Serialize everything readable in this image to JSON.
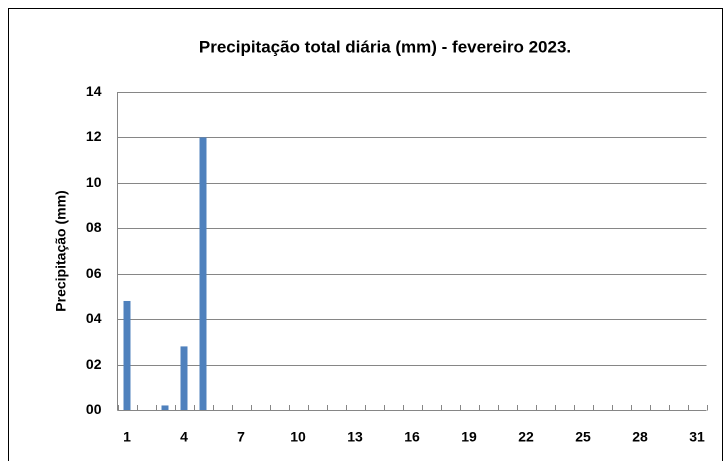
{
  "chart_data": {
    "type": "bar",
    "title": "Precipitação total diária (mm) - fevereiro 2023.",
    "y_label": "Precipitação (mm)",
    "categories": [
      "1",
      null,
      null,
      "4",
      null,
      null,
      "7",
      null,
      null,
      "10",
      null,
      null,
      "13",
      null,
      null,
      "16",
      null,
      null,
      "19",
      null,
      null,
      "22",
      null,
      null,
      "25",
      null,
      null,
      "28",
      null,
      null,
      "31"
    ],
    "values": [
      4.8,
      0,
      0.2,
      2.8,
      12,
      0,
      0,
      0,
      0,
      0,
      0,
      0,
      0,
      0,
      0,
      0,
      0,
      0,
      0,
      0,
      0,
      0,
      0,
      0,
      0,
      0,
      0,
      0,
      0,
      0,
      0
    ],
    "color": "#4f81bd",
    "ylim": [
      0,
      14
    ],
    "yticks": [
      {
        "value": 0,
        "label": "00"
      },
      {
        "value": 2,
        "label": "02"
      },
      {
        "value": 4,
        "label": "04"
      },
      {
        "value": 6,
        "label": "06"
      },
      {
        "value": 8,
        "label": "08"
      },
      {
        "value": 10,
        "label": "10"
      },
      {
        "value": 12,
        "label": "12"
      },
      {
        "value": 14,
        "label": "14"
      }
    ],
    "grid": true
  }
}
